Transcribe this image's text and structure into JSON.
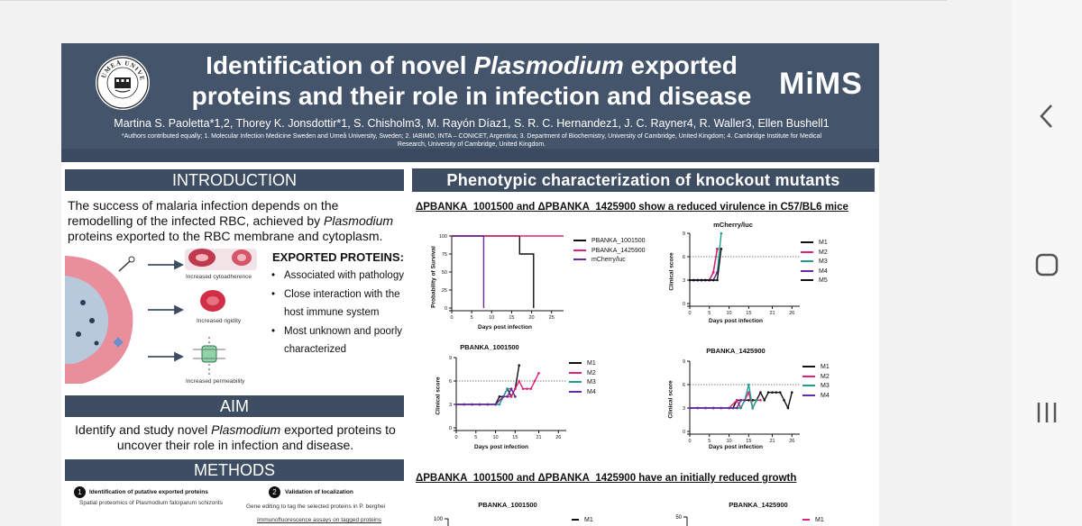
{
  "poster": {
    "title_line1_pre": "Identification of novel ",
    "title_line1_italic": "Plasmodium",
    "title_line1_post": " exported",
    "title_line2": "proteins and their role in infection and disease",
    "logo_right": "MiMS",
    "logo_left_text": "UMEÅ UNIVERSITET",
    "authors": "Martina S. Paoletta*1,2, Thorey K. Jonsdottir*1, S. Chisholm3, M. Rayón Díaz1, S. R. C. Hernandez1, J. C. Rayner4, R. Waller3, Ellen Bushell1",
    "affiliations": "*Authors contributed equally; 1. Molecular Infection Medicine Sweden and Umeå University, Sweden; 2. IABIMO, INTA – CONICET, Argentina; 3. Department of Biochemistry, University of Cambridge, United Kingdom; 4. Cambridge Institute for Medical Research, University of Cambridge, United Kingdom."
  },
  "introduction": {
    "heading": "INTRODUCTION",
    "text_pre": "The success of malaria infection depends on the remodelling of the infected RBC, achieved by ",
    "text_italic": "Plasmodium",
    "text_post": " proteins exported to the RBC membrane and cytoplasm.",
    "figure_labels": [
      "Increased cytoadherence",
      "Increased rigidity",
      "Increased permeability"
    ],
    "exported_heading": "EXPORTED PROTEINS:",
    "exported_items": [
      "Associated with pathology",
      "Close interaction with the host immune system",
      "Most unknown and poorly characterized"
    ]
  },
  "aim": {
    "heading": "AIM",
    "text_pre": "Identify and study novel ",
    "text_italic": "Plasmodium",
    "text_post": " exported proteins to uncover their role in infection and disease."
  },
  "methods": {
    "heading": "METHODS",
    "step1_num": "1",
    "step1_title": "Identification of putative exported proteins",
    "step1_sub": "Spatial proteomics of Plasmodium falciparum schizonts",
    "step2_num": "2",
    "step2_title": "Validation of localization",
    "step2_sub1": "Gene editing to tag the selected proteins in P. berghei",
    "step2_sub2": "Immunofluorescence assays on tagged proteins"
  },
  "phenotype": {
    "heading": "Phenotypic characterization of knockout mutants",
    "subtitle1": "ΔPBANKA_1001500 and ΔPBANKA_1425900 show a reduced virulence in C57/BL6 mice",
    "subtitle2": "ΔPBANKA_1001500 and ΔPBANKA_1425900 have an initially reduced growth"
  },
  "colors": {
    "header_bg": "#44546a",
    "section_bar": "#3f4d62",
    "black": "#111111",
    "magenta": "#e0217a",
    "teal": "#1f9e8e",
    "purple": "#6a2a9e"
  },
  "chart_data": [
    {
      "type": "line",
      "title": "",
      "xlabel": "Days post infection",
      "ylabel": "Probability of Survival",
      "xlim": [
        0,
        28
      ],
      "ylim": [
        0,
        100
      ],
      "xticks": [
        0,
        5,
        10,
        15,
        20,
        25
      ],
      "yticks": [
        0,
        25,
        50,
        75,
        100
      ],
      "legend": "right",
      "series": [
        {
          "name": "PBANKA_1001500",
          "color": "#111111",
          "x": [
            0,
            17,
            17,
            20.5,
            20.5
          ],
          "y": [
            100,
            100,
            75,
            75,
            0
          ]
        },
        {
          "name": "PBANKA_1425900",
          "color": "#e0217a",
          "x": [
            0,
            28
          ],
          "y": [
            100,
            100
          ]
        },
        {
          "name": "mCherry/luc",
          "color": "#6a2a9e",
          "x": [
            0,
            8,
            8
          ],
          "y": [
            100,
            100,
            0
          ]
        }
      ]
    },
    {
      "type": "line",
      "title": "mCherry/luc",
      "xlabel": "Days post infection",
      "ylabel": "Clinical score",
      "xlim": [
        0,
        28
      ],
      "ylim": [
        0,
        9
      ],
      "xticks": [
        0,
        5,
        10,
        15,
        21,
        26
      ],
      "yticks": [
        0,
        3,
        6,
        9
      ],
      "threshold": 6,
      "legend": "right",
      "series": [
        {
          "name": "M1",
          "color": "#111111",
          "x": [
            0,
            1,
            2,
            3,
            4,
            5,
            6,
            7
          ],
          "y": [
            3,
            3,
            3,
            3,
            3,
            3,
            4,
            7
          ]
        },
        {
          "name": "M2",
          "color": "#e0217a",
          "x": [
            0,
            1,
            2,
            3,
            4,
            5,
            6,
            7
          ],
          "y": [
            3,
            3,
            3,
            3,
            3,
            3,
            4,
            7
          ]
        },
        {
          "name": "M3",
          "color": "#1f9e8e",
          "x": [
            0,
            1,
            2,
            3,
            4,
            5,
            6,
            7,
            8
          ],
          "y": [
            3,
            3,
            3,
            3,
            3,
            3,
            3,
            4,
            9
          ]
        },
        {
          "name": "M4",
          "color": "#6a2a9e",
          "x": [
            0,
            1,
            2,
            3,
            4,
            5,
            6,
            7
          ],
          "y": [
            3,
            3,
            3,
            3,
            3,
            3,
            3,
            4
          ]
        },
        {
          "name": "M5",
          "color": "#111111",
          "x": [
            0,
            1,
            2,
            3,
            4,
            5,
            6,
            7,
            8
          ],
          "y": [
            3,
            3,
            3,
            3,
            3,
            3,
            3,
            3,
            7
          ]
        }
      ]
    },
    {
      "type": "line",
      "title": "PBANKA_1001500",
      "xlabel": "Days post infection",
      "ylabel": "Clinical score",
      "xlim": [
        0,
        28
      ],
      "ylim": [
        0,
        9
      ],
      "xticks": [
        0,
        5,
        10,
        15,
        21,
        26
      ],
      "yticks": [
        0,
        3,
        6,
        9
      ],
      "threshold": 6,
      "legend": "right",
      "series": [
        {
          "name": "M1",
          "color": "#111111",
          "x": [
            0,
            2,
            4,
            6,
            8,
            10,
            11,
            12,
            13,
            14,
            15,
            16
          ],
          "y": [
            3,
            3,
            3,
            3,
            3,
            3,
            4,
            4,
            5,
            4,
            5,
            8
          ]
        },
        {
          "name": "M2",
          "color": "#e0217a",
          "x": [
            0,
            2,
            4,
            6,
            8,
            10,
            12,
            13,
            14,
            15,
            16,
            17,
            18,
            19,
            20,
            21
          ],
          "y": [
            3,
            3,
            3,
            3,
            3,
            3,
            4,
            4,
            4,
            5,
            6,
            5,
            5,
            5,
            6,
            7
          ]
        },
        {
          "name": "M3",
          "color": "#1f9e8e",
          "x": [
            0,
            2,
            4,
            6,
            8,
            10,
            11,
            12,
            13,
            14,
            15
          ],
          "y": [
            3,
            3,
            3,
            3,
            3,
            3,
            3,
            4,
            5,
            5,
            4
          ]
        },
        {
          "name": "M4",
          "color": "#6a2a9e",
          "x": [
            0,
            2,
            4,
            6,
            8,
            10,
            12,
            13,
            14,
            15
          ],
          "y": [
            3,
            3,
            3,
            3,
            3,
            3,
            4,
            4,
            5,
            4
          ]
        }
      ]
    },
    {
      "type": "line",
      "title": "PBANKA_1425900",
      "xlabel": "Days post infection",
      "ylabel": "Clinical score",
      "xlim": [
        0,
        28
      ],
      "ylim": [
        0,
        9
      ],
      "xticks": [
        0,
        5,
        10,
        15,
        21,
        26
      ],
      "yticks": [
        0,
        3,
        6,
        9
      ],
      "threshold": 6,
      "legend": "right",
      "series": [
        {
          "name": "M1",
          "color": "#111111",
          "x": [
            0,
            2,
            4,
            6,
            8,
            10,
            11,
            12,
            13,
            14,
            15,
            16,
            17,
            18,
            19,
            20,
            21,
            22,
            23,
            24,
            25,
            26
          ],
          "y": [
            3,
            3,
            3,
            3,
            3,
            3,
            3,
            4,
            4,
            4,
            4,
            4,
            4,
            5,
            4,
            5,
            5,
            5,
            5,
            4,
            3,
            5
          ]
        },
        {
          "name": "M2",
          "color": "#e0217a",
          "x": [
            0,
            2,
            4,
            6,
            8,
            10,
            12,
            13,
            14,
            15,
            16,
            17,
            18
          ],
          "y": [
            3,
            3,
            3,
            3,
            3,
            3,
            4,
            3,
            4,
            5,
            3,
            4,
            4
          ]
        },
        {
          "name": "M3",
          "color": "#1f9e8e",
          "x": [
            0,
            2,
            4,
            6,
            8,
            10,
            12,
            13,
            14,
            15,
            16,
            17
          ],
          "y": [
            3,
            3,
            3,
            3,
            3,
            3,
            3,
            3,
            4,
            6,
            3,
            4
          ]
        },
        {
          "name": "M4",
          "color": "#6a2a9e",
          "x": [
            0,
            2,
            4,
            6,
            8,
            10,
            12,
            13,
            14
          ],
          "y": [
            3,
            3,
            3,
            3,
            3,
            3,
            3,
            4,
            4
          ]
        }
      ]
    },
    {
      "type": "line",
      "title": "PBANKA_1001500",
      "xlabel": "",
      "ylabel": "",
      "yticks": [
        100
      ],
      "legend": "right",
      "series": [
        {
          "name": "M1",
          "color": "#111111",
          "x": [],
          "y": []
        }
      ]
    },
    {
      "type": "line",
      "title": "PBANKA_1425900",
      "xlabel": "",
      "ylabel": "",
      "yticks": [
        50
      ],
      "legend": "right",
      "series": [
        {
          "name": "M1",
          "color": "#e0217a",
          "x": [],
          "y": []
        }
      ]
    }
  ]
}
